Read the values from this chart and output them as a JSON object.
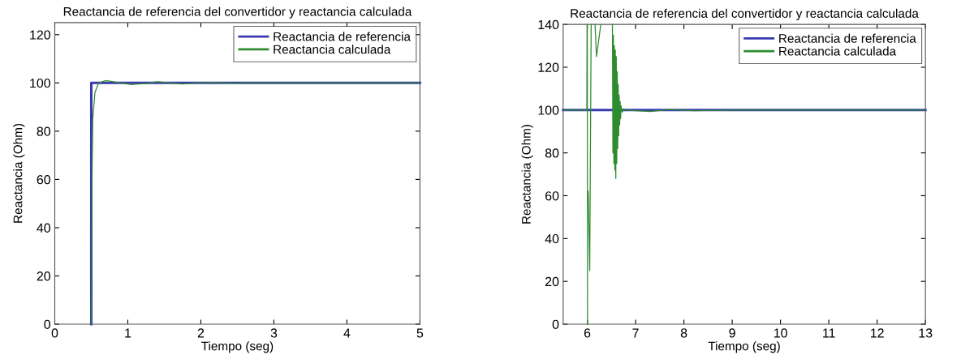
{
  "chart_data": [
    {
      "type": "line",
      "title": "Reactancia de referencia del convertidor y reactancia calculada",
      "xlabel": "Tiempo (seg)",
      "ylabel": "Reactancia (Ohm)",
      "xlim": [
        0,
        5
      ],
      "xticks": [
        0,
        1,
        2,
        3,
        4,
        5
      ],
      "ylim": [
        0,
        125
      ],
      "yticks": [
        0,
        20,
        40,
        60,
        80,
        100,
        120
      ],
      "grid": false,
      "legend": "top right",
      "series": [
        {
          "name": "Reactancia de referencia",
          "color": "#3a3ab0",
          "x": [
            0.5,
            0.5,
            5
          ],
          "values": [
            0,
            100,
            100
          ]
        },
        {
          "name": "Reactancia calculada",
          "color": "#2e8b2e",
          "x": [
            0.5,
            0.51,
            0.52,
            0.55,
            0.6,
            0.7,
            0.85,
            1.05,
            1.25,
            1.4,
            1.6,
            1.75,
            1.95,
            2.1,
            2.4,
            2.7,
            5
          ],
          "values": [
            0,
            60,
            85,
            96,
            100,
            101,
            100.2,
            99.3,
            99.8,
            100.5,
            100,
            99.6,
            100,
            100.2,
            99.9,
            100,
            100
          ]
        }
      ]
    },
    {
      "type": "line",
      "title": "Reactancia de referencia del convertidor y reactancia calculada",
      "xlabel": "Tiempo (seg)",
      "ylabel": "Reactancia (Ohm)",
      "xlim": [
        5.5,
        13
      ],
      "xticks": [
        6,
        7,
        8,
        9,
        10,
        11,
        12,
        13
      ],
      "ylim": [
        0,
        140
      ],
      "yticks": [
        0,
        20,
        40,
        60,
        80,
        100,
        120,
        140
      ],
      "grid": false,
      "legend": "top right",
      "series": [
        {
          "name": "Reactancia de referencia",
          "color": "#3a3ab0",
          "x": [
            5.5,
            13
          ],
          "values": [
            100,
            100
          ]
        },
        {
          "name": "Reactancia calculada",
          "color": "#2e8b2e",
          "x": [
            5.5,
            5.99,
            5.995,
            5.997,
            6.0,
            6.005,
            6.01,
            6.02,
            6.05,
            6.08,
            6.082,
            6.16,
            6.19,
            6.28,
            6.285,
            6.52,
            6.53,
            6.54,
            6.55,
            6.56,
            6.57,
            6.58,
            6.59,
            6.6,
            6.61,
            6.62,
            6.63,
            6.64,
            6.65,
            6.66,
            6.67,
            6.68,
            6.69,
            6.7,
            6.72,
            6.75,
            6.8,
            7.3,
            7.7,
            8.2,
            9,
            13
          ],
          "values": [
            100,
            100,
            140,
            null,
            140,
            0,
            null,
            62,
            25,
            140,
            null,
            140,
            125,
            140,
            null,
            140,
            80,
            135,
            75,
            130,
            72,
            128,
            68,
            125,
            75,
            118,
            82,
            112,
            88,
            107,
            93,
            104,
            96,
            102,
            99,
            100.5,
            100,
            99.3,
            100.3,
            99.7,
            100,
            100
          ]
        }
      ]
    }
  ]
}
